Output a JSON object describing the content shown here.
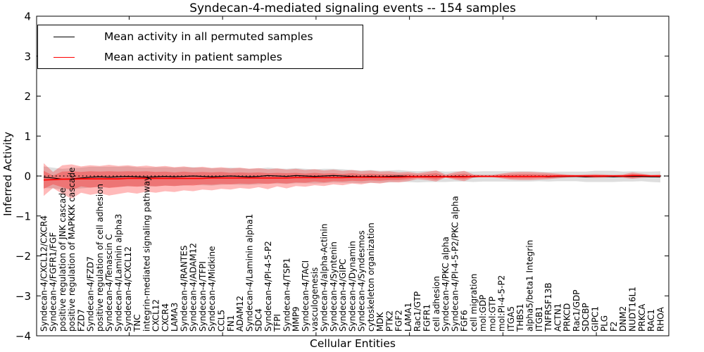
{
  "chart_data": {
    "type": "line",
    "title": "Syndecan-4-mediated signaling events -- 154 samples",
    "xlabel": "Cellular Entities",
    "ylabel": "Inferred Activity",
    "ylim": [
      -4,
      4
    ],
    "yticks": [
      -4,
      -3,
      -2,
      -1,
      0,
      1,
      2,
      3,
      4
    ],
    "xticks": [
      10,
      20,
      30,
      40,
      50,
      60
    ],
    "grid": false,
    "legend_position": "upper left",
    "zero_reference_line": 0,
    "tick_direction": "in",
    "x_tick_label_rotation": 90,
    "categories": [
      "Syndecan-4/CXCL12/CXCR4",
      "Syndecan-4/FGFR1/FGF",
      "positive regulation of JNK cascade",
      "positive regulation of MAPKKK cascade",
      "FZD7",
      "Syndecan-4/FZD7",
      "positive regulation of cell adhesion",
      "Syndecan-4/Tenascin C",
      "Syndecan-4/Laminin alpha3",
      "Syndecan-4/CXCL12",
      "TNC",
      "integrin-mediated signaling pathway",
      "CXCL12",
      "CXCR4",
      "LAMA3",
      "Syndecan-4/RANTES",
      "Syndecan-4/ADAM12",
      "Syndecan-4/TFPI",
      "Syndecan-4/Midkine",
      "CCL5",
      "FN1",
      "ADAM12",
      "Syndecan-4/Laminin alpha1",
      "SDC4",
      "Syndecan-4/PI-4-5-P2",
      "TFPI",
      "Syndecan-4/TSP1",
      "MMP9",
      "Syndecan-4/TACI",
      "vasculogenesis",
      "Syndecan-4/alpha-Actinin",
      "Syndecan-4/Syntenin",
      "Syndecan-4/GIPC",
      "Syndecan-4/Dynamin",
      "Syndecan-4/Syndesmos",
      "cytoskeleton organization",
      "MDK",
      "PTK2",
      "FGF2",
      "LAMA1",
      "Rac1/GTP",
      "FGFR1",
      "cell adhesion",
      "Syndecan-4/PKC alpha",
      "Syndecan-4/PI-4-5-P2/PKC alpha",
      "FGF6",
      "cell migration",
      "mol:GDP",
      "mol:GTP",
      "mol:PI-4-5-P2",
      "ITGA5",
      "THBS1",
      "alpha5/beta1 Integrin",
      "ITGB1",
      "TNFRSF13B",
      "ACTN1",
      "PRKCD",
      "Rac1/GDP",
      "SDCBP",
      "GIPC1",
      "PLG",
      "F2",
      "DNM2",
      "NUDT16L1",
      "PRKCA",
      "RAC1",
      "RHOA"
    ],
    "series": [
      {
        "name": "Mean activity in all permuted samples",
        "color": "#000000",
        "values": [
          -0.03,
          -0.05,
          -0.08,
          -0.07,
          -0.05,
          -0.03,
          -0.02,
          -0.03,
          -0.02,
          -0.01,
          -0.02,
          -0.03,
          -0.02,
          -0.01,
          -0.02,
          -0.01,
          0.0,
          -0.01,
          -0.02,
          -0.01,
          0.0,
          -0.01,
          -0.02,
          -0.01,
          0.01,
          0.0,
          -0.01,
          0.01,
          0.0,
          -0.01,
          0.0,
          0.01,
          0.0,
          -0.01,
          -0.02,
          -0.01,
          -0.02,
          -0.01,
          0.0,
          -0.01,
          -0.02,
          -0.01,
          -0.01,
          -0.02,
          -0.01,
          -0.01,
          -0.02,
          -0.01,
          -0.01,
          -0.01,
          -0.01,
          -0.01,
          -0.01,
          -0.01,
          -0.02,
          -0.01,
          -0.01,
          -0.01,
          -0.02,
          -0.01,
          -0.01,
          -0.02,
          -0.01,
          -0.01,
          -0.01,
          -0.02,
          -0.02
        ]
      },
      {
        "name": "Mean activity in patient samples",
        "color": "#ff0000",
        "values": [
          -0.1,
          -0.09,
          -0.08,
          -0.08,
          -0.07,
          -0.07,
          -0.07,
          -0.07,
          -0.07,
          -0.06,
          -0.06,
          -0.06,
          -0.06,
          -0.06,
          -0.06,
          -0.06,
          -0.06,
          -0.06,
          -0.05,
          -0.05,
          -0.05,
          -0.05,
          -0.05,
          -0.05,
          -0.05,
          -0.05,
          -0.05,
          -0.04,
          -0.04,
          -0.04,
          -0.04,
          -0.04,
          -0.04,
          -0.03,
          -0.03,
          -0.03,
          -0.03,
          -0.03,
          -0.03,
          -0.02,
          -0.02,
          -0.02,
          -0.02,
          -0.02,
          -0.02,
          -0.02,
          -0.01,
          -0.01,
          -0.01,
          -0.01,
          -0.01,
          -0.01,
          -0.01,
          -0.01,
          -0.01,
          0.0,
          0.0,
          0.0,
          0.0,
          0.0,
          0.0,
          0.0,
          0.0,
          0.01,
          0.01,
          0.0,
          0.0
        ]
      }
    ],
    "bands": [
      {
        "name": "permuted samples range",
        "color": "#000000",
        "opacity": 0.13,
        "upper": [
          0.24,
          0.21,
          0.18,
          0.2,
          0.21,
          0.23,
          0.23,
          0.23,
          0.23,
          0.24,
          0.22,
          0.21,
          0.22,
          0.22,
          0.21,
          0.22,
          0.22,
          0.21,
          0.2,
          0.2,
          0.21,
          0.2,
          0.18,
          0.19,
          0.21,
          0.19,
          0.18,
          0.2,
          0.18,
          0.17,
          0.18,
          0.18,
          0.17,
          0.15,
          0.14,
          0.15,
          0.13,
          0.14,
          0.15,
          0.13,
          0.12,
          0.13,
          0.13,
          0.11,
          0.12,
          0.12,
          0.11,
          0.12,
          0.12,
          0.12,
          0.12,
          0.12,
          0.12,
          0.11,
          0.1,
          0.11,
          0.11,
          0.11,
          0.11,
          0.13,
          0.13,
          0.13,
          0.11,
          0.12,
          0.11,
          0.11,
          0.12
        ],
        "lower": [
          -0.3,
          -0.31,
          -0.34,
          -0.34,
          -0.31,
          -0.29,
          -0.27,
          -0.29,
          -0.27,
          -0.26,
          -0.26,
          -0.27,
          -0.26,
          -0.24,
          -0.25,
          -0.24,
          -0.22,
          -0.23,
          -0.24,
          -0.22,
          -0.21,
          -0.22,
          -0.22,
          -0.21,
          -0.19,
          -0.19,
          -0.2,
          -0.18,
          -0.18,
          -0.19,
          -0.18,
          -0.16,
          -0.17,
          -0.17,
          -0.18,
          -0.17,
          -0.17,
          -0.16,
          -0.15,
          -0.15,
          -0.16,
          -0.15,
          -0.15,
          -0.15,
          -0.14,
          -0.14,
          -0.15,
          -0.14,
          -0.14,
          -0.14,
          -0.14,
          -0.14,
          -0.14,
          -0.13,
          -0.14,
          -0.13,
          -0.13,
          -0.13,
          -0.15,
          -0.15,
          -0.15,
          -0.15,
          -0.14,
          -0.14,
          -0.13,
          -0.15,
          -0.16
        ]
      },
      {
        "name": "patient samples range",
        "color": "#ff0000",
        "opacity": 0.27,
        "upper": [
          0.32,
          0.1,
          0.27,
          0.29,
          0.24,
          0.27,
          0.25,
          0.28,
          0.25,
          0.27,
          0.24,
          0.26,
          0.23,
          0.25,
          0.22,
          0.24,
          0.21,
          0.23,
          0.2,
          0.22,
          0.19,
          0.21,
          0.18,
          0.2,
          0.17,
          0.19,
          0.16,
          0.18,
          0.15,
          0.17,
          0.14,
          0.16,
          0.13,
          0.15,
          0.12,
          0.14,
          0.11,
          0.12,
          0.09,
          0.1,
          0.07,
          0.1,
          0.14,
          0.04,
          0.09,
          0.13,
          0.04,
          0.03,
          0.03,
          0.06,
          0.09,
          0.1,
          0.1,
          0.09,
          0.08,
          0.06,
          0.04,
          0.03,
          0.04,
          0.05,
          0.04,
          0.03,
          0.04,
          0.09,
          0.06,
          0.03,
          0.04
        ],
        "lower": [
          -0.5,
          -0.3,
          -0.45,
          -0.57,
          -0.42,
          -0.47,
          -0.43,
          -0.49,
          -0.45,
          -0.41,
          -0.44,
          -0.39,
          -0.42,
          -0.38,
          -0.4,
          -0.36,
          -0.38,
          -0.34,
          -0.36,
          -0.32,
          -0.34,
          -0.3,
          -0.32,
          -0.28,
          -0.33,
          -0.26,
          -0.31,
          -0.25,
          -0.27,
          -0.23,
          -0.25,
          -0.21,
          -0.23,
          -0.19,
          -0.21,
          -0.17,
          -0.19,
          -0.15,
          -0.16,
          -0.13,
          -0.08,
          -0.1,
          -0.14,
          -0.04,
          -0.09,
          -0.13,
          -0.04,
          -0.03,
          -0.03,
          -0.06,
          -0.09,
          -0.1,
          -0.1,
          -0.09,
          -0.08,
          -0.06,
          -0.04,
          -0.03,
          -0.04,
          -0.05,
          -0.04,
          -0.03,
          -0.04,
          -0.07,
          -0.05,
          -0.03,
          -0.04
        ]
      },
      {
        "name": "patient samples core range",
        "color": "#ff0000",
        "opacity": 0.28,
        "upper": [
          0.13,
          0.01,
          0.11,
          0.12,
          0.1,
          0.12,
          0.11,
          0.12,
          0.11,
          0.12,
          0.11,
          0.12,
          0.1,
          0.11,
          0.09,
          0.11,
          0.09,
          0.1,
          0.09,
          0.1,
          0.08,
          0.09,
          0.08,
          0.09,
          0.07,
          0.08,
          0.07,
          0.08,
          0.06,
          0.08,
          0.06,
          0.07,
          0.05,
          0.07,
          0.05,
          0.06,
          0.05,
          0.05,
          0.04,
          0.05,
          0.03,
          0.05,
          0.07,
          0.01,
          0.04,
          0.06,
          0.02,
          0.01,
          0.01,
          0.03,
          0.04,
          0.05,
          0.05,
          0.04,
          0.04,
          0.03,
          0.02,
          0.01,
          0.02,
          0.02,
          0.02,
          0.01,
          0.02,
          0.05,
          0.03,
          0.01,
          0.02
        ],
        "lower": [
          -0.32,
          -0.21,
          -0.28,
          -0.35,
          -0.26,
          -0.29,
          -0.27,
          -0.3,
          -0.28,
          -0.25,
          -0.27,
          -0.24,
          -0.26,
          -0.24,
          -0.25,
          -0.23,
          -0.24,
          -0.21,
          -0.22,
          -0.2,
          -0.21,
          -0.19,
          -0.2,
          -0.18,
          -0.2,
          -0.17,
          -0.19,
          -0.16,
          -0.17,
          -0.14,
          -0.16,
          -0.13,
          -0.14,
          -0.12,
          -0.13,
          -0.11,
          -0.12,
          -0.1,
          -0.1,
          -0.08,
          -0.05,
          -0.06,
          -0.09,
          -0.03,
          -0.06,
          -0.08,
          -0.03,
          -0.02,
          -0.02,
          -0.04,
          -0.06,
          -0.06,
          -0.06,
          -0.05,
          -0.05,
          -0.04,
          -0.03,
          -0.02,
          -0.03,
          -0.03,
          -0.03,
          -0.02,
          -0.03,
          -0.05,
          -0.03,
          -0.02,
          -0.03
        ]
      }
    ]
  }
}
